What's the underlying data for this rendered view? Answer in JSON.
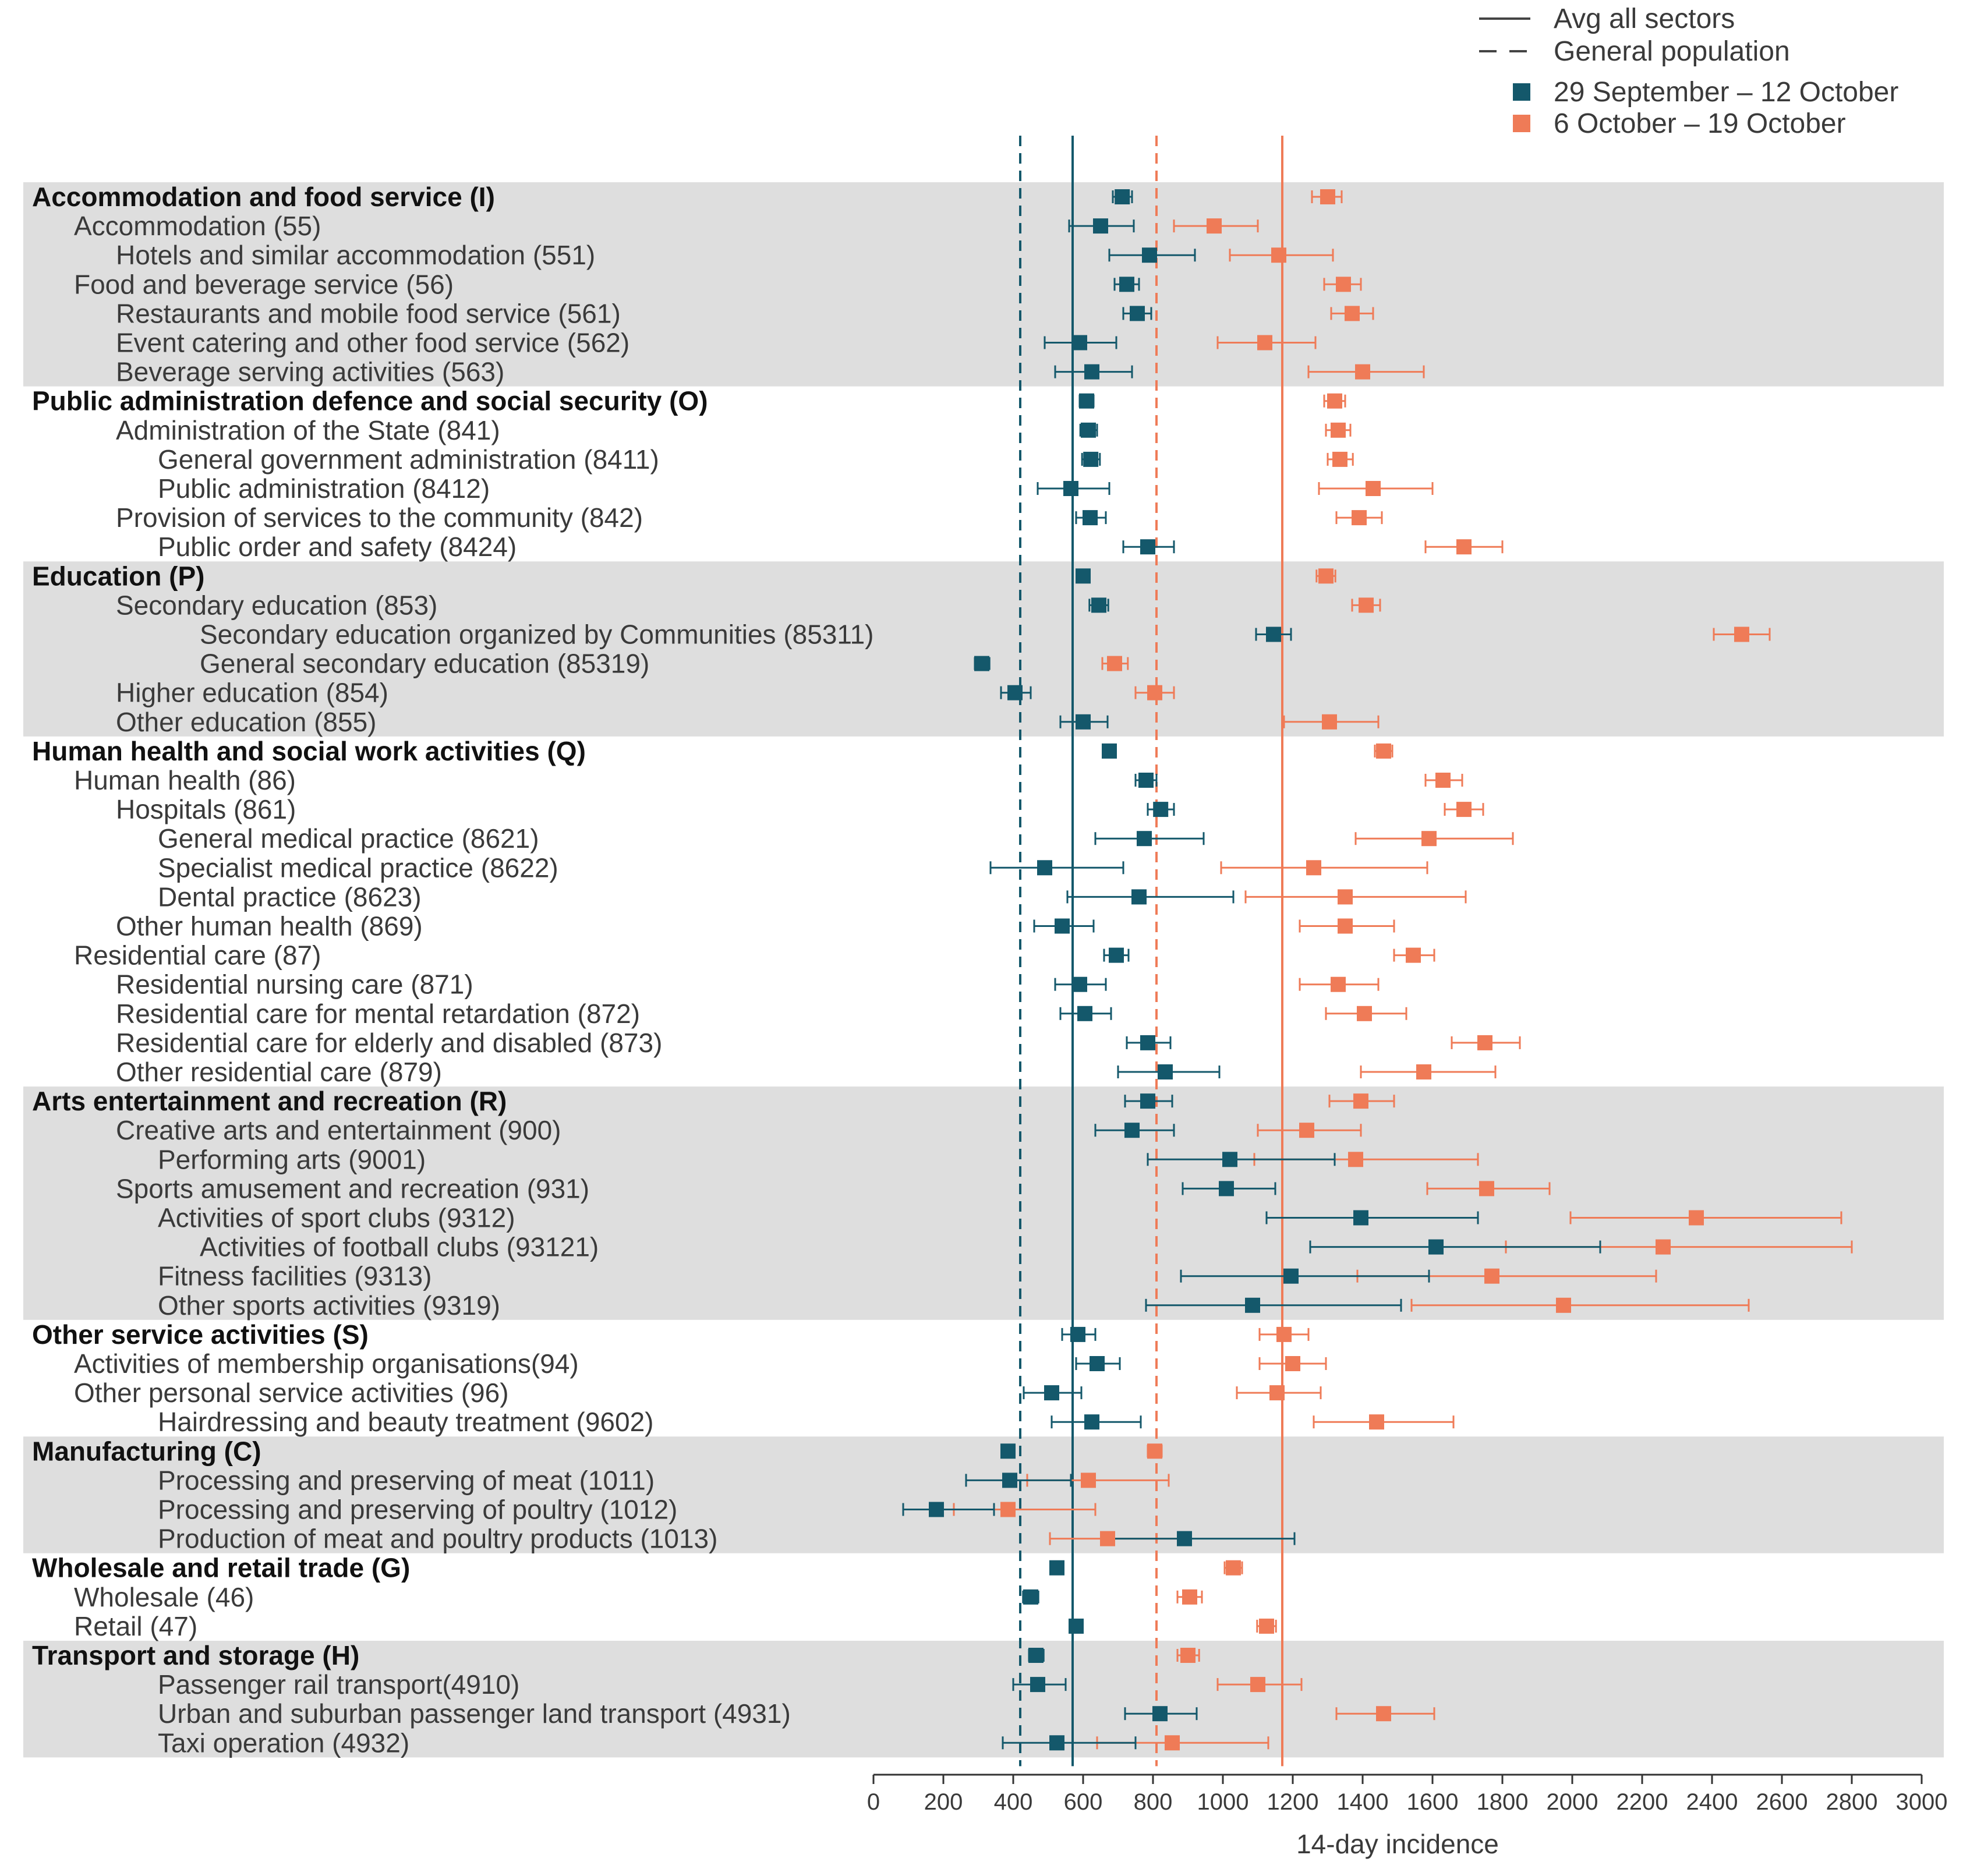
{
  "chart_data": {
    "type": "forest",
    "xlabel": "14-day incidence",
    "xlim": [
      0,
      3000
    ],
    "xticks": [
      0,
      200,
      400,
      600,
      800,
      1000,
      1200,
      1400,
      1600,
      1800,
      2000,
      2200,
      2400,
      2600,
      2800,
      3000
    ],
    "reference_lines": [
      {
        "name": "Avg all sectors",
        "style": "solid",
        "period1_value": 570,
        "period2_value": 1170
      },
      {
        "name": "General population",
        "style": "dashed",
        "period1_value": 420,
        "period2_value": 810
      }
    ],
    "series": [
      {
        "name": "29 September – 12 October",
        "color": "#14586b"
      },
      {
        "name": "6 October – 19 October",
        "color": "#ef7b57"
      }
    ],
    "rows": [
      {
        "label": "Accommodation and food service (I)",
        "level": 0,
        "bold": true,
        "shade": true,
        "p1": [
          712,
          685,
          740
        ],
        "p2": [
          1300,
          1255,
          1340
        ]
      },
      {
        "label": "Accommodation (55)",
        "level": 1,
        "bold": false,
        "shade": true,
        "p1": [
          650,
          560,
          745
        ],
        "p2": [
          975,
          860,
          1100
        ]
      },
      {
        "label": "Hotels and similar accommodation (551)",
        "level": 2,
        "bold": false,
        "shade": true,
        "p1": [
          790,
          675,
          920
        ],
        "p2": [
          1160,
          1020,
          1315
        ]
      },
      {
        "label": "Food and beverage service (56)",
        "level": 1,
        "bold": false,
        "shade": true,
        "p1": [
          725,
          690,
          760
        ],
        "p2": [
          1345,
          1290,
          1395
        ]
      },
      {
        "label": "Restaurants and mobile food service (561)",
        "level": 2,
        "bold": false,
        "shade": true,
        "p1": [
          755,
          715,
          795
        ],
        "p2": [
          1370,
          1310,
          1430
        ]
      },
      {
        "label": "Event catering and other food service (562)",
        "level": 2,
        "bold": false,
        "shade": true,
        "p1": [
          590,
          490,
          695
        ],
        "p2": [
          1120,
          985,
          1265
        ]
      },
      {
        "label": "Beverage serving activities (563)",
        "level": 2,
        "bold": false,
        "shade": true,
        "p1": [
          625,
          520,
          740
        ],
        "p2": [
          1400,
          1245,
          1575
        ]
      },
      {
        "label": "Public administration defence and social security (O)",
        "level": 0,
        "bold": true,
        "shade": false,
        "p1": [
          610,
          590,
          630
        ],
        "p2": [
          1320,
          1290,
          1350
        ]
      },
      {
        "label": "Administration of the State (841)",
        "level": 2,
        "bold": false,
        "shade": false,
        "p1": [
          615,
          592,
          640
        ],
        "p2": [
          1330,
          1295,
          1365
        ]
      },
      {
        "label": "General government administration (8411)",
        "level": 3,
        "bold": false,
        "shade": false,
        "p1": [
          622,
          597,
          648
        ],
        "p2": [
          1335,
          1300,
          1372
        ]
      },
      {
        "label": "Public administration (8412)",
        "level": 3,
        "bold": false,
        "shade": false,
        "p1": [
          565,
          470,
          675
        ],
        "p2": [
          1430,
          1275,
          1600
        ]
      },
      {
        "label": "Provision of services to the community (842)",
        "level": 2,
        "bold": false,
        "shade": false,
        "p1": [
          620,
          580,
          665
        ],
        "p2": [
          1390,
          1325,
          1455
        ]
      },
      {
        "label": "Public order and safety (8424)",
        "level": 3,
        "bold": false,
        "shade": false,
        "p1": [
          785,
          715,
          860
        ],
        "p2": [
          1690,
          1580,
          1800
        ]
      },
      {
        "label": "Education (P)",
        "level": 0,
        "bold": true,
        "shade": true,
        "p1": [
          600,
          582,
          618
        ],
        "p2": [
          1295,
          1268,
          1322
        ]
      },
      {
        "label": "Secondary education (853)",
        "level": 2,
        "bold": false,
        "shade": true,
        "p1": [
          645,
          618,
          672
        ],
        "p2": [
          1410,
          1370,
          1450
        ]
      },
      {
        "label": "Secondary education organized by Communities (85311)",
        "level": 4,
        "bold": false,
        "shade": true,
        "p1": [
          1145,
          1095,
          1195
        ],
        "p2": [
          2485,
          2405,
          2565
        ]
      },
      {
        "label": "General secondary education (85319)",
        "level": 4,
        "bold": false,
        "shade": true,
        "p1": [
          310,
          290,
          332
        ],
        "p2": [
          690,
          655,
          728
        ]
      },
      {
        "label": "Higher education (854)",
        "level": 2,
        "bold": false,
        "shade": true,
        "p1": [
          405,
          365,
          450
        ],
        "p2": [
          805,
          750,
          860
        ]
      },
      {
        "label": "Other education (855)",
        "level": 2,
        "bold": false,
        "shade": true,
        "p1": [
          600,
          535,
          670
        ],
        "p2": [
          1305,
          1175,
          1445
        ]
      },
      {
        "label": "Human health and social work activities (Q)",
        "level": 0,
        "bold": true,
        "shade": false,
        "p1": [
          675,
          660,
          692
        ],
        "p2": [
          1460,
          1435,
          1485
        ]
      },
      {
        "label": "Human health (86)",
        "level": 1,
        "bold": false,
        "shade": false,
        "p1": [
          780,
          750,
          810
        ],
        "p2": [
          1630,
          1580,
          1685
        ]
      },
      {
        "label": "Hospitals (861)",
        "level": 2,
        "bold": false,
        "shade": false,
        "p1": [
          822,
          785,
          860
        ],
        "p2": [
          1690,
          1635,
          1745
        ]
      },
      {
        "label": "General medical practice (8621)",
        "level": 3,
        "bold": false,
        "shade": false,
        "p1": [
          775,
          635,
          945
        ],
        "p2": [
          1590,
          1380,
          1830
        ]
      },
      {
        "label": "Specialist medical practice (8622)",
        "level": 3,
        "bold": false,
        "shade": false,
        "p1": [
          490,
          335,
          715
        ],
        "p2": [
          1260,
          995,
          1585
        ]
      },
      {
        "label": "Dental practice (8623)",
        "level": 3,
        "bold": false,
        "shade": false,
        "p1": [
          760,
          555,
          1030
        ],
        "p2": [
          1350,
          1065,
          1695
        ]
      },
      {
        "label": "Other human health (869)",
        "level": 2,
        "bold": false,
        "shade": false,
        "p1": [
          540,
          460,
          630
        ],
        "p2": [
          1350,
          1220,
          1490
        ]
      },
      {
        "label": "Residential care (87)",
        "level": 1,
        "bold": false,
        "shade": false,
        "p1": [
          695,
          660,
          730
        ],
        "p2": [
          1545,
          1490,
          1605
        ]
      },
      {
        "label": "Residential nursing care (871)",
        "level": 2,
        "bold": false,
        "shade": false,
        "p1": [
          590,
          520,
          665
        ],
        "p2": [
          1330,
          1220,
          1445
        ]
      },
      {
        "label": "Residential care for mental retardation (872)",
        "level": 2,
        "bold": false,
        "shade": false,
        "p1": [
          605,
          535,
          680
        ],
        "p2": [
          1405,
          1295,
          1525
        ]
      },
      {
        "label": "Residential care for elderly and disabled (873)",
        "level": 2,
        "bold": false,
        "shade": false,
        "p1": [
          785,
          725,
          850
        ],
        "p2": [
          1750,
          1655,
          1850
        ]
      },
      {
        "label": "Other residential care (879)",
        "level": 2,
        "bold": false,
        "shade": false,
        "p1": [
          835,
          700,
          990
        ],
        "p2": [
          1575,
          1395,
          1780
        ]
      },
      {
        "label": "Arts entertainment and recreation (R)",
        "level": 0,
        "bold": true,
        "shade": true,
        "p1": [
          785,
          720,
          855
        ],
        "p2": [
          1395,
          1305,
          1490
        ]
      },
      {
        "label": "Creative arts and entertainment (900)",
        "level": 2,
        "bold": false,
        "shade": true,
        "p1": [
          740,
          635,
          860
        ],
        "p2": [
          1240,
          1100,
          1395
        ]
      },
      {
        "label": "Performing arts (9001)",
        "level": 3,
        "bold": false,
        "shade": true,
        "p1": [
          1020,
          785,
          1320
        ],
        "p2": [
          1380,
          1090,
          1730
        ]
      },
      {
        "label": "Sports amusement and recreation (931)",
        "level": 2,
        "bold": false,
        "shade": true,
        "p1": [
          1010,
          885,
          1150
        ],
        "p2": [
          1755,
          1585,
          1935
        ]
      },
      {
        "label": "Activities of sport clubs (9312)",
        "level": 3,
        "bold": false,
        "shade": true,
        "p1": [
          1395,
          1125,
          1730
        ],
        "p2": [
          2355,
          1995,
          2770
        ]
      },
      {
        "label": "Activities of football clubs (93121)",
        "level": 4,
        "bold": false,
        "shade": true,
        "p1": [
          1610,
          1250,
          2080
        ],
        "p2": [
          2260,
          1810,
          2800
        ]
      },
      {
        "label": "Fitness facilities (9313)",
        "level": 3,
        "bold": false,
        "shade": true,
        "p1": [
          1195,
          880,
          1590
        ],
        "p2": [
          1770,
          1385,
          2240
        ]
      },
      {
        "label": "Other sports activities (9319)",
        "level": 3,
        "bold": false,
        "shade": true,
        "p1": [
          1085,
          780,
          1510
        ],
        "p2": [
          1975,
          1540,
          2505
        ]
      },
      {
        "label": "Other service activities (S)",
        "level": 0,
        "bold": true,
        "shade": false,
        "p1": [
          585,
          540,
          635
        ],
        "p2": [
          1175,
          1105,
          1245
        ]
      },
      {
        "label": "Activities of membership organisations(94)",
        "level": 1,
        "bold": false,
        "shade": false,
        "p1": [
          640,
          580,
          705
        ],
        "p2": [
          1200,
          1105,
          1295
        ]
      },
      {
        "label": "Other personal service activities (96)",
        "level": 1,
        "bold": false,
        "shade": false,
        "p1": [
          510,
          430,
          595
        ],
        "p2": [
          1155,
          1040,
          1280
        ]
      },
      {
        "label": "Hairdressing and beauty treatment (9602)",
        "level": 3,
        "bold": false,
        "shade": false,
        "p1": [
          625,
          510,
          765
        ],
        "p2": [
          1440,
          1260,
          1660
        ]
      },
      {
        "label": "Manufacturing (C)",
        "level": 0,
        "bold": true,
        "shade": true,
        "p1": [
          385,
          370,
          402
        ],
        "p2": [
          805,
          785,
          825
        ]
      },
      {
        "label": "Processing and preserving of meat (1011)",
        "level": 3,
        "bold": false,
        "shade": true,
        "p1": [
          390,
          265,
          565
        ],
        "p2": [
          615,
          440,
          845
        ]
      },
      {
        "label": "Processing and preserving of poultry (1012)",
        "level": 3,
        "bold": false,
        "shade": true,
        "p1": [
          180,
          85,
          345
        ],
        "p2": [
          385,
          230,
          635
        ]
      },
      {
        "label": "Production of meat and poultry products (1013)",
        "level": 3,
        "bold": false,
        "shade": true,
        "p1": [
          890,
          655,
          1205
        ],
        "p2": [
          670,
          505,
          885
        ]
      },
      {
        "label": "Wholesale and retail trade (G)",
        "level": 0,
        "bold": true,
        "shade": false,
        "p1": [
          525,
          508,
          542
        ],
        "p2": [
          1030,
          1005,
          1055
        ]
      },
      {
        "label": "Wholesale (46)",
        "level": 1,
        "bold": false,
        "shade": false,
        "p1": [
          450,
          428,
          472
        ],
        "p2": [
          905,
          870,
          940
        ]
      },
      {
        "label": "Retail (47)",
        "level": 1,
        "bold": false,
        "shade": false,
        "p1": [
          580,
          562,
          598
        ],
        "p2": [
          1125,
          1098,
          1152
        ]
      },
      {
        "label": "Transport and storage (H)",
        "level": 0,
        "bold": true,
        "shade": true,
        "p1": [
          465,
          445,
          487
        ],
        "p2": [
          900,
          870,
          932
        ]
      },
      {
        "label": "Passenger rail transport(4910)",
        "level": 3,
        "bold": false,
        "shade": true,
        "p1": [
          470,
          400,
          550
        ],
        "p2": [
          1100,
          985,
          1225
        ]
      },
      {
        "label": "Urban and suburban passenger land transport (4931)",
        "level": 3,
        "bold": false,
        "shade": true,
        "p1": [
          820,
          720,
          925
        ],
        "p2": [
          1460,
          1325,
          1605
        ]
      },
      {
        "label": "Taxi operation (4932)",
        "level": 3,
        "bold": false,
        "shade": true,
        "p1": [
          525,
          370,
          750
        ],
        "p2": [
          855,
          640,
          1130
        ]
      }
    ]
  }
}
